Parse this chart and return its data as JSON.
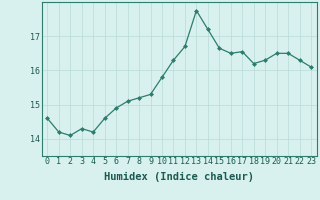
{
  "x": [
    0,
    1,
    2,
    3,
    4,
    5,
    6,
    7,
    8,
    9,
    10,
    11,
    12,
    13,
    14,
    15,
    16,
    17,
    18,
    19,
    20,
    21,
    22,
    23
  ],
  "y": [
    14.6,
    14.2,
    14.1,
    14.3,
    14.2,
    14.6,
    14.9,
    15.1,
    15.2,
    15.3,
    15.8,
    16.3,
    16.7,
    17.75,
    17.2,
    16.65,
    16.5,
    16.55,
    16.2,
    16.3,
    16.5,
    16.5,
    16.3,
    16.1
  ],
  "line_color": "#2d7d6e",
  "marker": "D",
  "marker_size": 2.0,
  "bg_color": "#d8f0ee",
  "grid_color": "#b8dbd8",
  "xlabel": "Humidex (Indice chaleur)",
  "ylim": [
    13.5,
    18.0
  ],
  "xlim": [
    -0.5,
    23.5
  ],
  "yticks": [
    14,
    15,
    16,
    17
  ],
  "xticks": [
    0,
    1,
    2,
    3,
    4,
    5,
    6,
    7,
    8,
    9,
    10,
    11,
    12,
    13,
    14,
    15,
    16,
    17,
    18,
    19,
    20,
    21,
    22,
    23
  ],
  "tick_fontsize": 6.0,
  "xlabel_fontsize": 7.5,
  "spine_color": "#2d7d6e"
}
